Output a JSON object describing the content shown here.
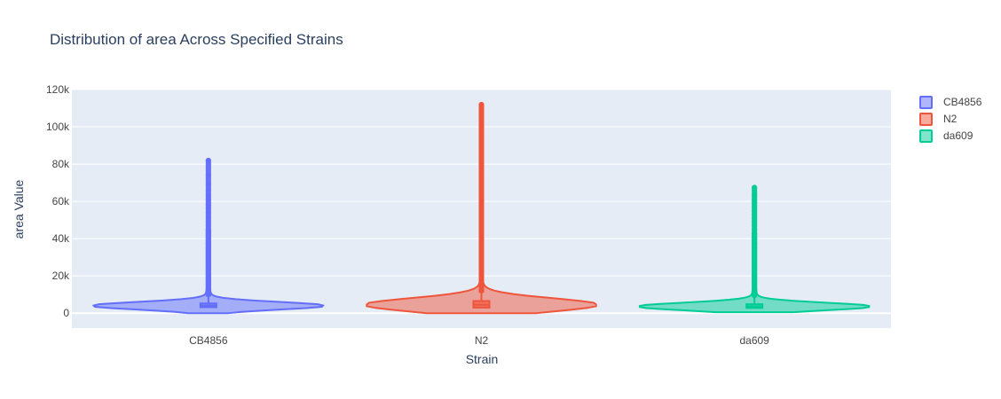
{
  "chart_data": {
    "type": "violin",
    "title": "Distribution of area Across Specified Strains",
    "xlabel": "Strain",
    "ylabel": "area Value",
    "categories": [
      "CB4856",
      "N2",
      "da609"
    ],
    "ylim": [
      -8000,
      120000
    ],
    "y_ticks": [
      0,
      20000,
      40000,
      60000,
      80000,
      100000,
      120000
    ],
    "y_tick_labels": [
      "0",
      "20k",
      "40k",
      "60k",
      "80k",
      "100k",
      "120k"
    ],
    "grid": true,
    "legend_position": "top-right",
    "series": [
      {
        "name": "CB4856",
        "color": "#636efa",
        "min": 0,
        "q1": 3200,
        "median": 4000,
        "q3": 5200,
        "upper_fence": 9000,
        "max": 82000,
        "points_max": 82000,
        "outliers_sample": [
          82000,
          74000,
          69000,
          66000,
          63000,
          61000,
          58000,
          56000,
          54000,
          51000,
          49000,
          47000,
          45000,
          43000,
          41000,
          39000,
          37000,
          35000,
          33000,
          31000,
          29000,
          27000,
          25000,
          23000,
          21000,
          19000,
          17000,
          15000,
          13000,
          11000,
          10000
        ]
      },
      {
        "name": "N2",
        "color": "#ef553b",
        "min": 0,
        "q1": 3000,
        "median": 4500,
        "q3": 6500,
        "upper_fence": 11000,
        "max": 112000,
        "outliers_sample": [
          112000,
          107000,
          98000,
          95000,
          89000,
          84000,
          79000,
          77000,
          74000,
          71000,
          68000,
          66000,
          63000,
          61000,
          58000,
          55000,
          52000,
          50000,
          47000,
          44000,
          41000,
          38000,
          35000,
          32000,
          29000,
          26000,
          23000,
          20000,
          17000,
          14000,
          12000
        ]
      },
      {
        "name": "da609",
        "color": "#00cc96",
        "min": 500,
        "q1": 2800,
        "median": 3600,
        "q3": 4800,
        "upper_fence": 8500,
        "max": 67500,
        "outliers_sample": [
          67500,
          63000,
          61000,
          59000,
          57000,
          55000,
          53000,
          51000,
          49000,
          47000,
          45000,
          43000,
          41000,
          39000,
          37000,
          35000,
          33000,
          31000,
          29000,
          27000,
          25000,
          23000,
          21000,
          19000,
          17000,
          15000,
          13000,
          11000,
          9500
        ]
      }
    ]
  }
}
